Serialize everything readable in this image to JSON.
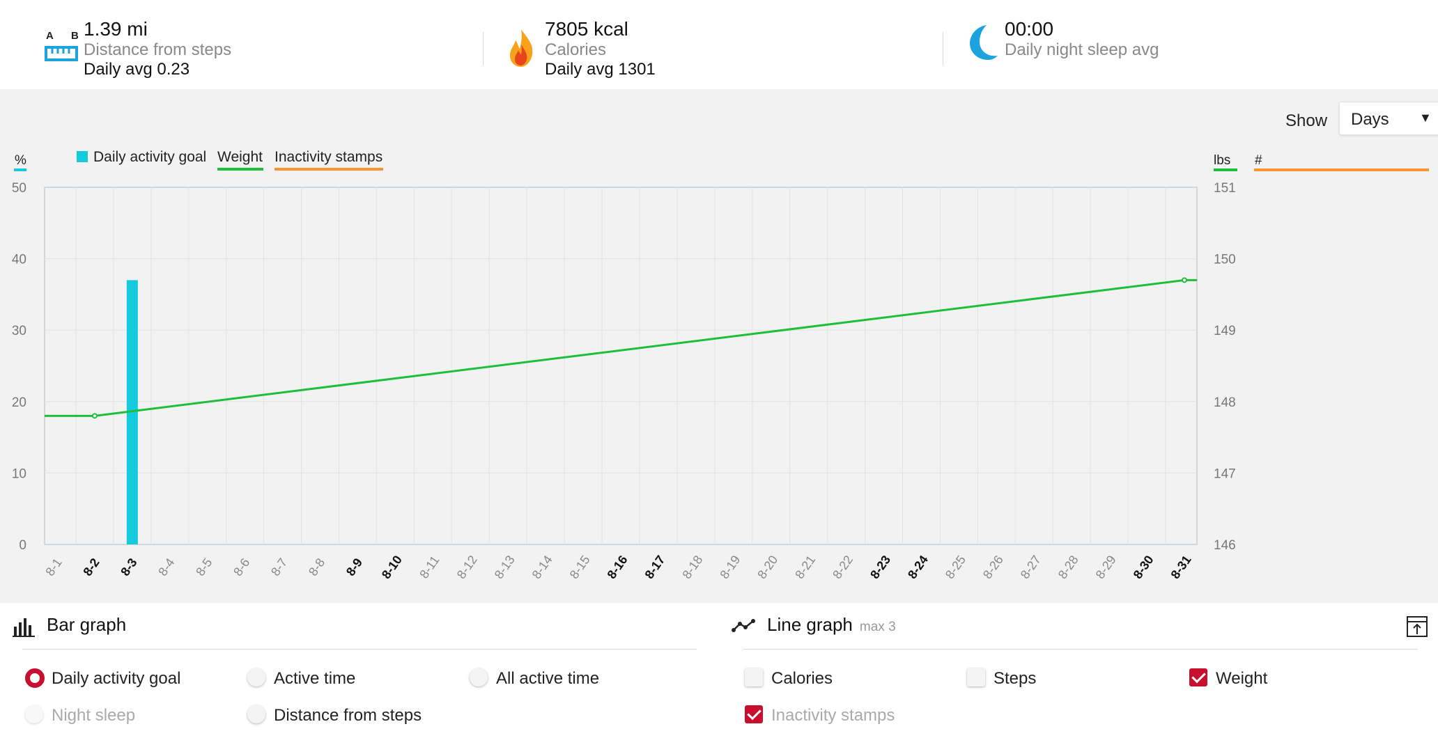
{
  "summary": {
    "distance": {
      "value": "1.39 mi",
      "label": "Distance from steps",
      "sub": "Daily avg 0.23",
      "icon": "ruler-ab-icon"
    },
    "calories": {
      "value": "7805 kcal",
      "label": "Calories",
      "sub": "Daily avg 1301",
      "icon": "flame-icon"
    },
    "sleep": {
      "value": "00:00",
      "label": "Daily night sleep avg",
      "icon": "moon-icon"
    }
  },
  "controls": {
    "show_label": "Show",
    "show_value": "Days"
  },
  "legend": {
    "activity_goal": "Daily activity goal",
    "weight": "Weight",
    "inactivity": "Inactivity stamps"
  },
  "axes": {
    "left_unit": "%",
    "right_unit_weight": "lbs",
    "right_unit_count": "#"
  },
  "colors": {
    "activity_goal": "#13cbdc",
    "weight": "#1dbe3a",
    "inactivity": "#f7962c",
    "selected": "#c8102e"
  },
  "chart_data": {
    "type": "bar",
    "categories": [
      "8-1",
      "8-2",
      "8-3",
      "8-4",
      "8-5",
      "8-6",
      "8-7",
      "8-8",
      "8-9",
      "8-10",
      "8-11",
      "8-12",
      "8-13",
      "8-14",
      "8-15",
      "8-16",
      "8-17",
      "8-18",
      "8-19",
      "8-20",
      "8-21",
      "8-22",
      "8-23",
      "8-24",
      "8-25",
      "8-26",
      "8-27",
      "8-28",
      "8-29",
      "8-30",
      "8-31"
    ],
    "bold_categories": [
      "8-2",
      "8-3",
      "8-9",
      "8-10",
      "8-16",
      "8-17",
      "8-23",
      "8-24",
      "8-30",
      "8-31"
    ],
    "series": [
      {
        "name": "Daily activity goal",
        "axis": "left",
        "type": "bar",
        "values": [
          0,
          0,
          37,
          0,
          0,
          0,
          0,
          0,
          0,
          0,
          0,
          0,
          0,
          0,
          0,
          0,
          0,
          0,
          0,
          0,
          0,
          0,
          0,
          0,
          0,
          0,
          0,
          0,
          0,
          0,
          0
        ]
      },
      {
        "name": "Weight",
        "axis": "right",
        "type": "line",
        "points": [
          {
            "x": "8-2",
            "y": 147.8
          },
          {
            "x": "8-31",
            "y": 149.7
          }
        ]
      }
    ],
    "ylim_left": [
      0,
      50
    ],
    "yticks_left": [
      0,
      10,
      20,
      30,
      40,
      50
    ],
    "ylim_right": [
      146,
      151
    ],
    "yticks_right": [
      146,
      147,
      148,
      149,
      150,
      151
    ],
    "grid": true
  },
  "bar_graph": {
    "title": "Bar graph",
    "icon": "bar-chart-icon",
    "options": [
      {
        "label": "Daily activity goal",
        "selected": true,
        "disabled": false
      },
      {
        "label": "Active time",
        "selected": false,
        "disabled": false
      },
      {
        "label": "All active time",
        "selected": false,
        "disabled": false
      },
      {
        "label": "Night sleep",
        "selected": false,
        "disabled": true
      },
      {
        "label": "Distance from steps",
        "selected": false,
        "disabled": false
      }
    ]
  },
  "line_graph": {
    "title": "Line graph",
    "subtitle": "max 3",
    "icon": "line-chart-icon",
    "export_icon": "export-icon",
    "options": [
      {
        "label": "Calories",
        "checked": false,
        "disabled": false
      },
      {
        "label": "Steps",
        "checked": false,
        "disabled": false
      },
      {
        "label": "Weight",
        "checked": true,
        "disabled": false
      },
      {
        "label": "Inactivity stamps",
        "checked": true,
        "disabled": true
      }
    ]
  }
}
